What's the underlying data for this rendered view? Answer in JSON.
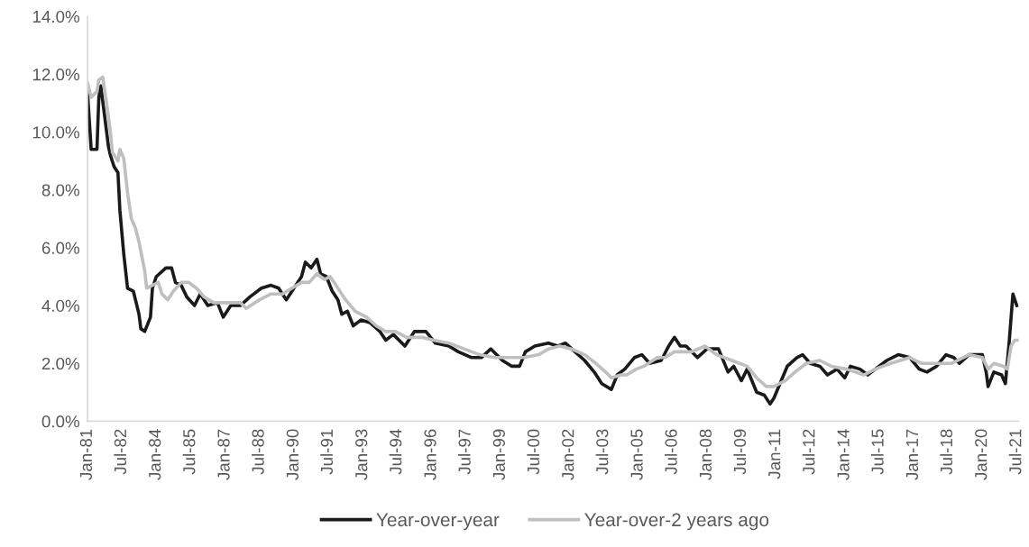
{
  "chart_data": {
    "type": "line",
    "xlim": [
      "1981-01",
      "2021-08"
    ],
    "xticks": [
      {
        "value": "1981-01",
        "label": "Jan-81"
      },
      {
        "value": "1982-07",
        "label": "Jul-82"
      },
      {
        "value": "1984-01",
        "label": "Jan-84"
      },
      {
        "value": "1985-07",
        "label": "Jul-85"
      },
      {
        "value": "1987-01",
        "label": "Jan-87"
      },
      {
        "value": "1988-07",
        "label": "Jul-88"
      },
      {
        "value": "1990-01",
        "label": "Jan-90"
      },
      {
        "value": "1991-07",
        "label": "Jul-91"
      },
      {
        "value": "1993-01",
        "label": "Jan-93"
      },
      {
        "value": "1994-07",
        "label": "Jul-94"
      },
      {
        "value": "1996-01",
        "label": "Jan-96"
      },
      {
        "value": "1997-07",
        "label": "Jul-97"
      },
      {
        "value": "1999-01",
        "label": "Jan-99"
      },
      {
        "value": "2000-07",
        "label": "Jul-00"
      },
      {
        "value": "2002-01",
        "label": "Jan-02"
      },
      {
        "value": "2003-07",
        "label": "Jul-03"
      },
      {
        "value": "2005-01",
        "label": "Jan-05"
      },
      {
        "value": "2006-07",
        "label": "Jul-06"
      },
      {
        "value": "2008-01",
        "label": "Jan-08"
      },
      {
        "value": "2009-07",
        "label": "Jul-09"
      },
      {
        "value": "2011-01",
        "label": "Jan-11"
      },
      {
        "value": "2012-07",
        "label": "Jul-12"
      },
      {
        "value": "2014-01",
        "label": "Jan-14"
      },
      {
        "value": "2015-07",
        "label": "Jul-15"
      },
      {
        "value": "2017-01",
        "label": "Jan-17"
      },
      {
        "value": "2018-07",
        "label": "Jul-18"
      },
      {
        "value": "2020-01",
        "label": "Jan-20"
      },
      {
        "value": "2021-07",
        "label": "Jul-21"
      }
    ],
    "ylim": [
      0,
      14
    ],
    "yticks": [
      {
        "value": 0,
        "label": "0.0%"
      },
      {
        "value": 2,
        "label": "2.0%"
      },
      {
        "value": 4,
        "label": "4.0%"
      },
      {
        "value": 6,
        "label": "6.0%"
      },
      {
        "value": 8,
        "label": "8.0%"
      },
      {
        "value": 10,
        "label": "10.0%"
      },
      {
        "value": 12,
        "label": "12.0%"
      },
      {
        "value": 14,
        "label": "14.0%"
      }
    ],
    "grid": false,
    "legend": "bottom",
    "marker": "none",
    "line_style": "solid",
    "series": [
      {
        "name": "Year-over-year",
        "color": "#1a1a1a",
        "x": [
          "1981-01",
          "1981-03",
          "1981-06",
          "1981-07",
          "1981-08",
          "1981-12",
          "1982-01",
          "1982-03",
          "1982-05",
          "1982-06",
          "1982-08",
          "1982-10",
          "1983-01",
          "1983-04",
          "1983-05",
          "1983-07",
          "1983-10",
          "1983-11",
          "1984-01",
          "1984-06",
          "1984-09",
          "1984-11",
          "1985-02",
          "1985-05",
          "1985-09",
          "1985-12",
          "1986-04",
          "1986-09",
          "1986-12",
          "1987-04",
          "1987-09",
          "1988-02",
          "1988-08",
          "1989-01",
          "1989-05",
          "1989-09",
          "1989-12",
          "1990-03",
          "1990-05",
          "1990-07",
          "1990-10",
          "1991-01",
          "1991-03",
          "1991-06",
          "1991-09",
          "1991-12",
          "1992-02",
          "1992-05",
          "1992-08",
          "1992-12",
          "1993-05",
          "1993-10",
          "1994-01",
          "1994-05",
          "1994-11",
          "1995-04",
          "1995-10",
          "1996-03",
          "1996-10",
          "1997-03",
          "1997-10",
          "1998-03",
          "1998-08",
          "1999-02",
          "1999-07",
          "1999-11",
          "2000-02",
          "2000-07",
          "2001-02",
          "2001-07",
          "2001-11",
          "2002-04",
          "2002-09",
          "2003-02",
          "2003-06",
          "2003-11",
          "2004-02",
          "2004-06",
          "2004-11",
          "2005-03",
          "2005-07",
          "2006-01",
          "2006-05",
          "2006-08",
          "2006-11",
          "2007-02",
          "2007-08",
          "2008-01",
          "2008-07",
          "2008-12",
          "2009-03",
          "2009-07",
          "2009-10",
          "2010-03",
          "2010-07",
          "2010-10",
          "2010-12",
          "2011-07",
          "2011-12",
          "2012-03",
          "2012-07",
          "2012-12",
          "2013-04",
          "2013-09",
          "2014-01",
          "2014-04",
          "2014-09",
          "2015-01",
          "2015-05",
          "2015-11",
          "2016-05",
          "2016-11",
          "2017-04",
          "2017-08",
          "2018-01",
          "2018-06",
          "2018-10",
          "2019-01",
          "2019-06",
          "2020-01",
          "2020-03",
          "2020-04",
          "2020-07",
          "2020-11",
          "2021-01",
          "2021-03",
          "2021-05",
          "2021-07"
        ],
        "values": [
          11.4,
          9.4,
          9.4,
          11.2,
          11.6,
          9.5,
          9.2,
          8.8,
          8.6,
          7.3,
          5.8,
          4.6,
          4.5,
          3.7,
          3.2,
          3.1,
          3.6,
          4.6,
          5.0,
          5.3,
          5.3,
          4.8,
          4.7,
          4.3,
          4.0,
          4.4,
          4.0,
          4.1,
          3.6,
          4.0,
          4.0,
          4.3,
          4.6,
          4.7,
          4.6,
          4.2,
          4.5,
          4.8,
          5.0,
          5.5,
          5.3,
          5.6,
          5.1,
          5.0,
          4.5,
          4.2,
          3.7,
          3.8,
          3.3,
          3.5,
          3.4,
          3.1,
          2.8,
          3.0,
          2.6,
          3.1,
          3.1,
          2.7,
          2.6,
          2.4,
          2.2,
          2.2,
          2.5,
          2.1,
          1.9,
          1.9,
          2.4,
          2.6,
          2.7,
          2.6,
          2.7,
          2.4,
          2.1,
          1.7,
          1.3,
          1.1,
          1.6,
          1.8,
          2.2,
          2.3,
          2.0,
          2.1,
          2.6,
          2.9,
          2.6,
          2.6,
          2.2,
          2.5,
          2.5,
          1.7,
          1.9,
          1.4,
          1.8,
          1.0,
          0.9,
          0.6,
          0.8,
          1.9,
          2.2,
          2.3,
          2.0,
          1.9,
          1.6,
          1.8,
          1.5,
          1.9,
          1.8,
          1.6,
          1.8,
          2.1,
          2.3,
          2.2,
          1.8,
          1.7,
          1.9,
          2.3,
          2.2,
          2.0,
          2.3,
          2.3,
          1.7,
          1.2,
          1.7,
          1.6,
          1.3,
          2.7,
          4.4,
          4.0
        ]
      },
      {
        "name": "Year-over-2 years ago",
        "color": "#bfbfbf",
        "x": [
          "1981-01",
          "1981-03",
          "1981-06",
          "1981-07",
          "1981-09",
          "1981-11",
          "1982-01",
          "1982-02",
          "1982-05",
          "1982-06",
          "1982-08",
          "1982-10",
          "1982-12",
          "1983-02",
          "1983-04",
          "1983-07",
          "1983-08",
          "1983-11",
          "1984-02",
          "1984-04",
          "1984-07",
          "1984-10",
          "1985-02",
          "1985-06",
          "1985-10",
          "1986-02",
          "1986-07",
          "1986-12",
          "1987-04",
          "1987-09",
          "1987-12",
          "1988-07",
          "1989-01",
          "1989-07",
          "1989-12",
          "1990-05",
          "1990-09",
          "1991-01",
          "1991-05",
          "1991-08",
          "1991-12",
          "1992-04",
          "1992-09",
          "1993-03",
          "1993-08",
          "1994-01",
          "1994-06",
          "1994-12",
          "1995-08",
          "1996-02",
          "1996-10",
          "1997-06",
          "1998-02",
          "1998-10",
          "1999-05",
          "2000-01",
          "2000-09",
          "2001-02",
          "2001-08",
          "2002-02",
          "2002-09",
          "2003-03",
          "2003-08",
          "2003-11",
          "2004-04",
          "2004-07",
          "2004-12",
          "2005-04",
          "2005-11",
          "2006-03",
          "2006-08",
          "2007-01",
          "2007-05",
          "2007-12",
          "2008-06",
          "2009-02",
          "2009-10",
          "2010-03",
          "2010-08",
          "2010-12",
          "2011-06",
          "2011-11",
          "2012-05",
          "2012-12",
          "2013-06",
          "2014-02",
          "2014-11",
          "2015-05",
          "2016-01",
          "2016-11",
          "2017-05",
          "2018-01",
          "2018-09",
          "2019-06",
          "2020-01",
          "2020-04",
          "2020-07",
          "2020-12",
          "2021-02",
          "2021-04",
          "2021-06",
          "2021-08"
        ],
        "values": [
          11.7,
          11.2,
          11.4,
          11.8,
          11.9,
          11.0,
          10.0,
          9.3,
          9.0,
          9.4,
          9.1,
          7.9,
          7.0,
          6.7,
          6.2,
          5.2,
          4.6,
          4.7,
          4.8,
          4.4,
          4.2,
          4.5,
          4.8,
          4.8,
          4.6,
          4.3,
          4.1,
          4.1,
          4.1,
          4.1,
          3.9,
          4.2,
          4.4,
          4.4,
          4.6,
          4.8,
          4.8,
          5.1,
          4.9,
          5.0,
          4.6,
          4.2,
          3.8,
          3.6,
          3.3,
          3.1,
          3.1,
          2.9,
          2.9,
          2.8,
          2.7,
          2.5,
          2.3,
          2.2,
          2.2,
          2.2,
          2.3,
          2.5,
          2.6,
          2.5,
          2.3,
          2.0,
          1.7,
          1.5,
          1.6,
          1.6,
          1.8,
          1.9,
          2.2,
          2.2,
          2.4,
          2.4,
          2.4,
          2.6,
          2.3,
          2.1,
          1.9,
          1.5,
          1.2,
          1.2,
          1.4,
          1.7,
          2.0,
          2.1,
          1.9,
          1.8,
          1.6,
          1.8,
          2.0,
          2.2,
          2.0,
          2.0,
          2.0,
          2.3,
          2.2,
          1.8,
          2.0,
          1.9,
          1.8,
          2.6,
          2.8,
          2.8
        ]
      }
    ]
  }
}
